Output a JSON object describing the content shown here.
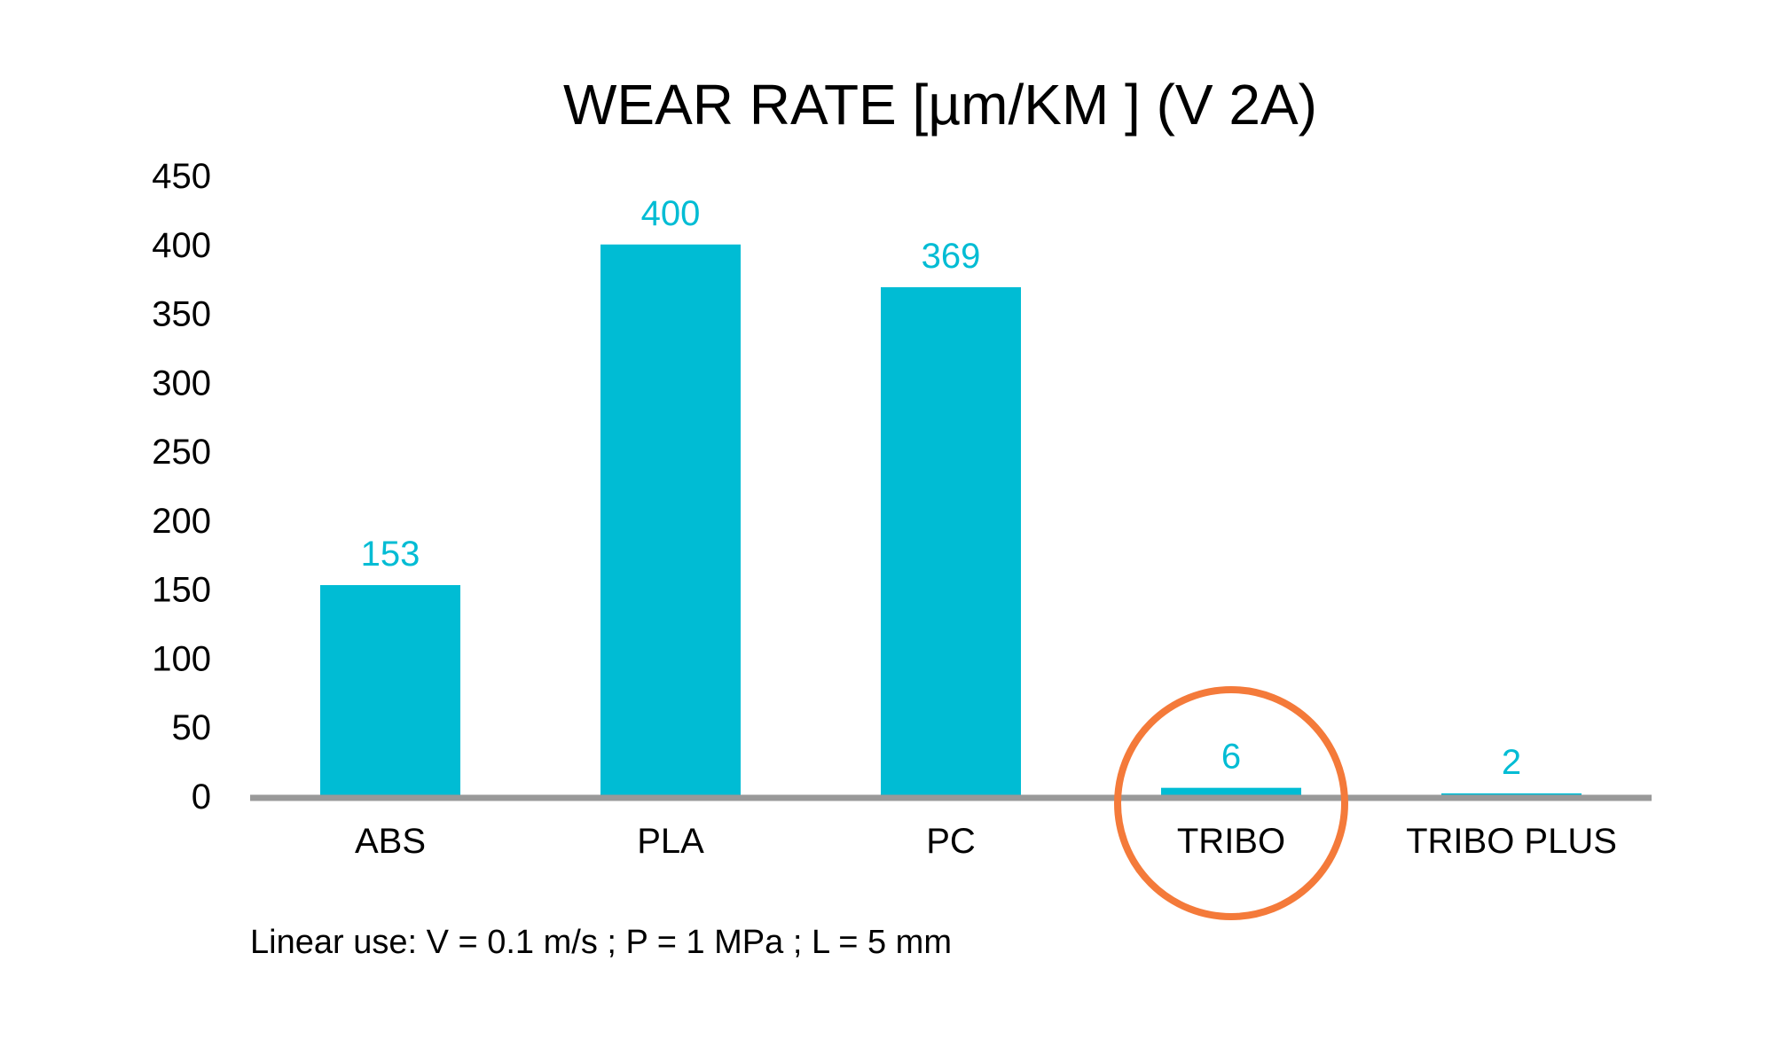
{
  "chart_data": {
    "type": "bar",
    "title": "WEAR RATE [µm/KM ] (V 2A)",
    "categories": [
      "ABS",
      "PLA",
      "PC",
      "TRIBO",
      "TRIBO PLUS"
    ],
    "values": [
      153,
      400,
      369,
      6,
      2
    ],
    "data_labels": [
      "153",
      "400",
      "369",
      "6",
      "2"
    ],
    "ylim": [
      0,
      450
    ],
    "yticks": [
      "0",
      "50",
      "100",
      "150",
      "200",
      "250",
      "300",
      "350",
      "400",
      "450"
    ],
    "xlabel": "",
    "ylabel": "",
    "grid": false,
    "legend": "none",
    "highlighted_category": "TRIBO",
    "footnote": "Linear use: V = 0.1 m/s ; P = 1 MPa ; L = 5 mm"
  },
  "colors": {
    "bar": "#00BCD4",
    "data_label": "#00BCD4",
    "axis": "#999999",
    "highlight_circle": "#F47A3A",
    "text": "#000000"
  }
}
